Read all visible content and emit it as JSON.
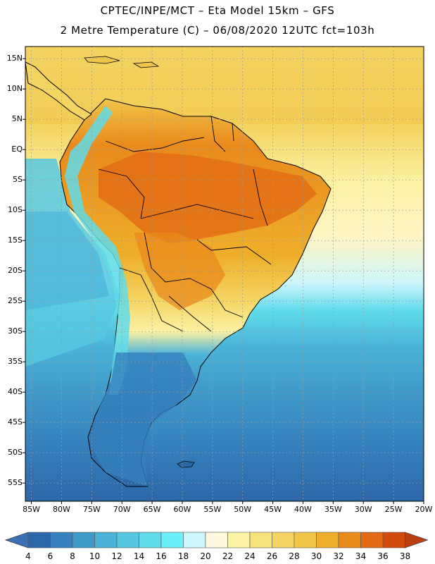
{
  "header": {
    "line1": "CPTEC/INPE/MCT –  Eta Model 15km – GFS",
    "line2": "2 Metre Temperature (C) – 06/08/2020 12UTC fct=103h"
  },
  "map": {
    "lon_range": [
      -86,
      -20
    ],
    "lat_range": [
      -58,
      17
    ],
    "lat_ticks": [
      "15N",
      "10N",
      "5N",
      "EQ",
      "5S",
      "10S",
      "15S",
      "20S",
      "25S",
      "30S",
      "35S",
      "40S",
      "45S",
      "50S",
      "55S"
    ],
    "lat_values": [
      15,
      10,
      5,
      0,
      -5,
      -10,
      -15,
      -20,
      -25,
      -30,
      -35,
      -40,
      -45,
      -50,
      -55
    ],
    "lon_ticks": [
      "85W",
      "80W",
      "75W",
      "70W",
      "65W",
      "60W",
      "55W",
      "50W",
      "45W",
      "40W",
      "35W",
      "30W",
      "25W",
      "20W"
    ],
    "lon_values": [
      -85,
      -80,
      -75,
      -70,
      -65,
      -60,
      -55,
      -50,
      -45,
      -40,
      -35,
      -30,
      -25,
      -20
    ]
  },
  "colorbar": {
    "labels": [
      "4",
      "6",
      "8",
      "10",
      "12",
      "14",
      "16",
      "18",
      "20",
      "22",
      "24",
      "26",
      "28",
      "30",
      "32",
      "34",
      "36",
      "38"
    ],
    "colors": [
      "#2c67a8",
      "#3580bd",
      "#409ac9",
      "#4bb3d8",
      "#56c8e0",
      "#60dcea",
      "#6cf0f8",
      "#cdf6fc",
      "#fff9e0",
      "#fcf2a4",
      "#f7e27c",
      "#f4d562",
      "#f0c548",
      "#eeae2a",
      "#e98a1c",
      "#e26a14",
      "#cf4a0c"
    ],
    "low_color": "#3b6fb3",
    "high_color": "#bb3f12"
  }
}
